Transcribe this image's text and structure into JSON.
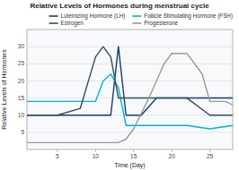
{
  "chart_data": {
    "type": "line",
    "title": "Relative Levels of Hormones during menstrual cycle",
    "x_label": "Time (Day)",
    "y_label": "Relative Levels of Hormones",
    "xlim": [
      1,
      28
    ],
    "ylim": [
      0,
      35
    ],
    "xticks": [
      5,
      10,
      15,
      20,
      25
    ],
    "yticks": [
      5,
      10,
      15,
      20,
      25,
      30
    ],
    "grid": true,
    "legend": "top-right",
    "series": [
      {
        "name": "Luteinizing Hormone (LH)",
        "color": "#1a3a6b",
        "x": [
          1,
          3,
          5,
          8,
          10,
          11,
          12,
          13,
          14,
          16,
          18,
          20,
          22,
          25,
          28
        ],
        "values": [
          10,
          10,
          10,
          10,
          10,
          10,
          10,
          30,
          10,
          10,
          15,
          15,
          15,
          15,
          15
        ]
      },
      {
        "name": "Follicle Stimulating Hormone (FSH)",
        "color": "#00b0e0",
        "x": [
          1,
          3,
          5,
          8,
          10,
          11,
          12,
          13,
          14,
          16,
          18,
          20,
          22,
          25,
          28
        ],
        "values": [
          14,
          14,
          14,
          14,
          14,
          20,
          22,
          18,
          7,
          7,
          7,
          7,
          7,
          6,
          7
        ]
      },
      {
        "name": "Estrogen",
        "color": "#2f4f5f",
        "x": [
          1,
          5,
          8,
          10,
          11,
          12,
          13,
          15,
          17,
          20,
          22,
          25,
          28
        ],
        "values": [
          10,
          10,
          12,
          27,
          30,
          27,
          15,
          15,
          15,
          15,
          15,
          10,
          10
        ]
      },
      {
        "name": "Progesterone",
        "color": "#999999",
        "x": [
          1,
          5,
          10,
          13,
          14,
          15,
          17,
          19,
          20,
          22,
          24,
          25,
          27,
          28
        ],
        "values": [
          2,
          2,
          2,
          2,
          3,
          6,
          15,
          25,
          28,
          28,
          22,
          14,
          14,
          13
        ]
      }
    ]
  }
}
